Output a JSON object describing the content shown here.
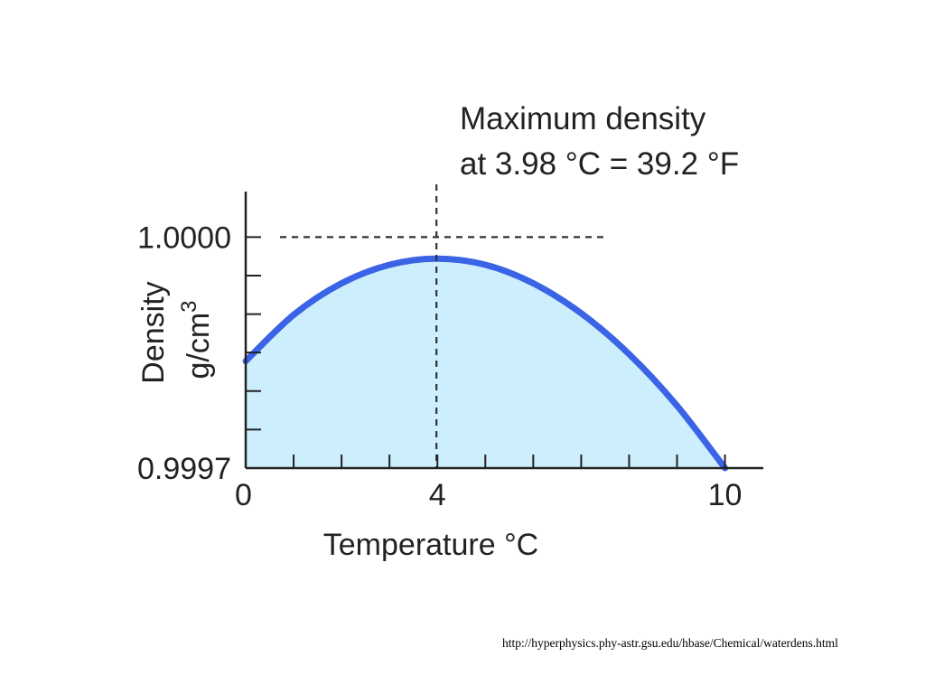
{
  "chart_data": {
    "type": "area",
    "xlabel": "Temperature °C",
    "ylabel_line1": "Density",
    "ylabel_line2": "g/cm",
    "ylabel_sup": "3",
    "x_tick_labels": [
      {
        "x": 0,
        "label": "0"
      },
      {
        "x": 4,
        "label": "4"
      },
      {
        "x": 10,
        "label": "10"
      }
    ],
    "y_tick_labels": [
      {
        "y": 1.0,
        "label": "1.0000"
      },
      {
        "y": 0.9997,
        "label": "0.9997"
      }
    ],
    "xlim": [
      0,
      10.8
    ],
    "ylim": [
      0.9997,
      1.0000591
    ],
    "x_minor_ticks": [
      0,
      1,
      2,
      3,
      4,
      5,
      6,
      7,
      8,
      9,
      10
    ],
    "y_minor_ticks": [
      0.9997,
      0.99975,
      0.9998,
      0.99985,
      0.9999,
      0.99995,
      1.0
    ],
    "series": [
      {
        "x": [
          0,
          1,
          2,
          3,
          3.98,
          5,
          6,
          7,
          8,
          9,
          10
        ],
        "y": [
          0.999839,
          0.999899,
          0.99994,
          0.999964,
          0.999972,
          0.999964,
          0.99994,
          0.999901,
          0.999848,
          0.999781,
          0.9997
        ]
      }
    ],
    "annotation": {
      "line1": "Maximum density",
      "line2": "at 3.98 °C = 39.2 °F",
      "max_x": 3.98,
      "max_y": 1.0
    },
    "colors": {
      "line": "#3a63e6",
      "fill": "#cdeefc",
      "axis": "#222222",
      "guide": "#333333"
    },
    "grid": false
  },
  "source_url": "http://hyperphysics.phy-astr.gsu.edu/hbase/Chemical/waterdens.html"
}
